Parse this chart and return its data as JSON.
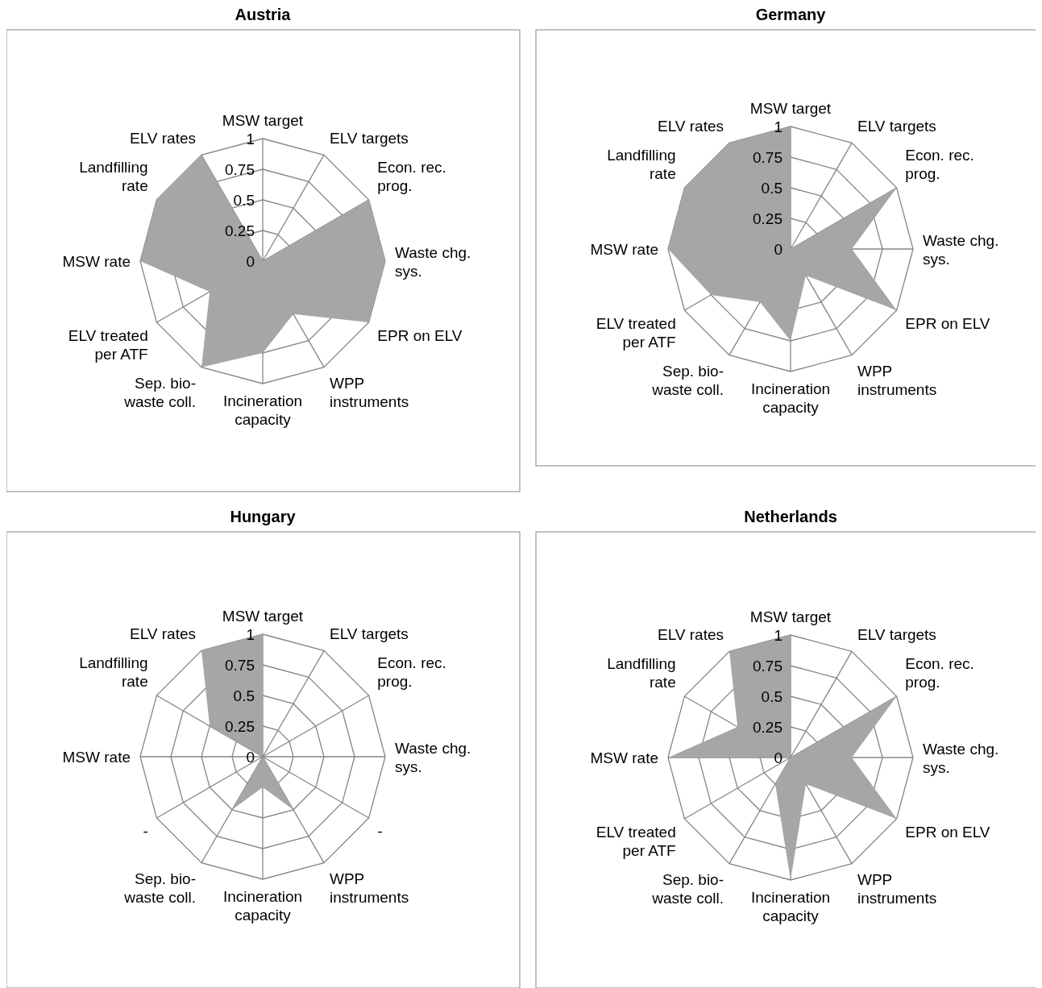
{
  "chart_data": [
    {
      "type": "radar",
      "title": "Austria",
      "categories": [
        "MSW target",
        "ELV targets",
        "Econ. rec. prog.",
        "Waste chg. sys.",
        "EPR on ELV",
        "WPP instruments",
        "Incineration capacity",
        "Sep. bio-waste coll.",
        "ELV treated per ATF",
        "MSW rate",
        "Landfilling rate",
        "ELV rates"
      ],
      "series": [
        {
          "color": "#a6a6a6",
          "values": [
            0,
            0,
            1,
            1,
            1,
            0.5,
            0.75,
            1,
            0.5,
            1,
            1,
            1
          ]
        }
      ],
      "ylim": [
        0,
        1
      ],
      "yticks": [
        0,
        0.25,
        0.5,
        0.75,
        1
      ],
      "grid": true
    },
    {
      "type": "radar",
      "title": "Germany",
      "categories": [
        "MSW target",
        "ELV targets",
        "Econ. rec. prog.",
        "Waste chg. sys.",
        "EPR on ELV",
        "WPP instruments",
        "Incineration capacity",
        "Sep. bio-waste coll.",
        "ELV treated per ATF",
        "MSW rate",
        "Landfilling rate",
        "ELV rates"
      ],
      "series": [
        {
          "color": "#a6a6a6",
          "values": [
            1,
            0,
            1,
            0.5,
            1,
            0.25,
            0.75,
            0.5,
            0.75,
            1,
            1,
            1
          ]
        }
      ],
      "ylim": [
        0,
        1
      ],
      "yticks": [
        0,
        0.25,
        0.5,
        0.75,
        1
      ],
      "grid": true
    },
    {
      "type": "radar",
      "title": "Hungary",
      "categories": [
        "MSW target",
        "ELV targets",
        "Econ. rec. prog.",
        "Waste chg. sys.",
        "-",
        "WPP instruments",
        "Incineration capacity",
        "Sep. bio-waste coll.",
        "-",
        "MSW rate",
        "Landfilling rate",
        "ELV rates"
      ],
      "series": [
        {
          "color": "#a6a6a6",
          "values": [
            1,
            0,
            1,
            0,
            0,
            0.5,
            0.25,
            0.5,
            0,
            0,
            0.5,
            1
          ]
        }
      ],
      "ylim": [
        0,
        1
      ],
      "yticks": [
        0,
        0.25,
        0.5,
        0.75,
        1
      ],
      "grid": true
    },
    {
      "type": "radar",
      "title": "Netherlands",
      "categories": [
        "MSW target",
        "ELV targets",
        "Econ. rec. prog.",
        "Waste chg. sys.",
        "EPR on ELV",
        "WPP instruments",
        "Incineration capacity",
        "Sep. bio-waste coll.",
        "ELV treated per ATF",
        "MSW rate",
        "Landfilling rate",
        "ELV rates"
      ],
      "series": [
        {
          "color": "#a6a6a6",
          "values": [
            1,
            0,
            1,
            0.5,
            1,
            0.25,
            1,
            0.25,
            0,
            1,
            0.5,
            1
          ]
        }
      ],
      "ylim": [
        0,
        1
      ],
      "yticks": [
        0,
        0.25,
        0.5,
        0.75,
        1
      ],
      "grid": true
    }
  ]
}
